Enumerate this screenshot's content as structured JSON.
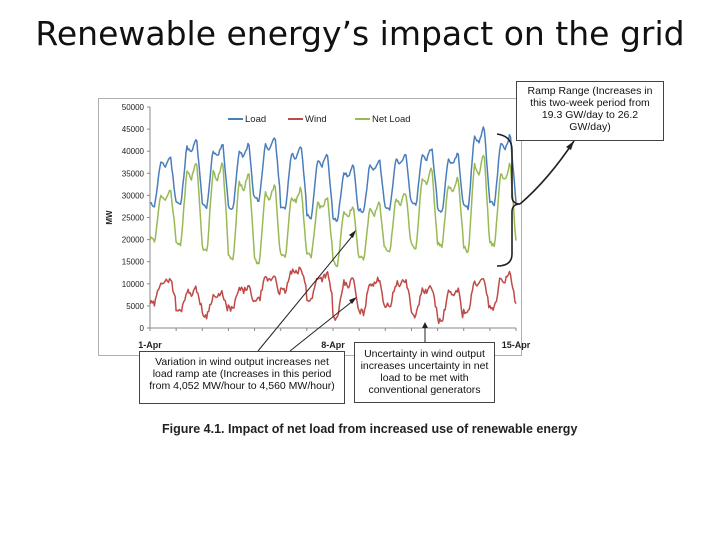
{
  "slide": {
    "title": "Renewable energy’s impact on the grid"
  },
  "callouts": {
    "ramp_range": "Ramp Range (Increases in this two-week period from 19.3 GW/day to 26.2 GW/day)",
    "variation": "Variation in wind output increases net load ramp ate (Increases in this period from 4,052 MW/hour to 4,560 MW/hour)",
    "uncertainty": "Uncertainty in wind output increases uncertainty in net load to be met with conventional generators"
  },
  "caption": "Figure 4.1. Impact of net load from increased use of renewable energy",
  "chart_data": {
    "type": "line",
    "ylabel": "MW",
    "xlabel": "",
    "ylim": [
      0,
      50000
    ],
    "yticks": [
      0,
      5000,
      10000,
      15000,
      20000,
      25000,
      30000,
      35000,
      40000,
      45000,
      50000
    ],
    "xlim": [
      0,
      14
    ],
    "xticks": [
      {
        "label": "1-Apr",
        "day": 0
      },
      {
        "label": "8-Apr",
        "day": 7
      },
      {
        "label": "15-Apr",
        "day": 14
      }
    ],
    "legend": "top-center",
    "grid": false,
    "colors": {
      "Load": "#4a7ebb",
      "Wind": "#be4b48",
      "Net Load": "#98b954"
    },
    "series_names": [
      "Load",
      "Wind",
      "Net Load"
    ],
    "daily_load_peaks": [
      39000,
      43000,
      42000,
      42000,
      43500,
      41500,
      40000,
      37000,
      38500,
      40000,
      41000,
      40000,
      46000,
      44000
    ],
    "daily_load_troughs": [
      27000,
      27000,
      26500,
      26000,
      28000,
      26000,
      24000,
      23500,
      25500,
      26000,
      27000,
      25500,
      26000,
      27000
    ],
    "daily_wind_peaks": [
      11500,
      9000,
      8000,
      9500,
      12000,
      13500,
      12500,
      11500,
      11500,
      11000,
      9500,
      9000,
      11500,
      12500
    ],
    "daily_wind_troughs": [
      5000,
      3500,
      2500,
      4000,
      6000,
      8000,
      6000,
      1500,
      3000,
      4500,
      2500,
      1000,
      3000,
      4000
    ],
    "daily_net_peaks": [
      31500,
      38000,
      38000,
      35500,
      33000,
      32000,
      30000,
      28000,
      28500,
      31000,
      36500,
      34500,
      40000,
      37500
    ],
    "daily_net_troughs": [
      19000,
      17500,
      16000,
      14500,
      13500,
      15000,
      15500,
      13500,
      15000,
      16500,
      17000,
      17500,
      16000,
      17500
    ]
  }
}
